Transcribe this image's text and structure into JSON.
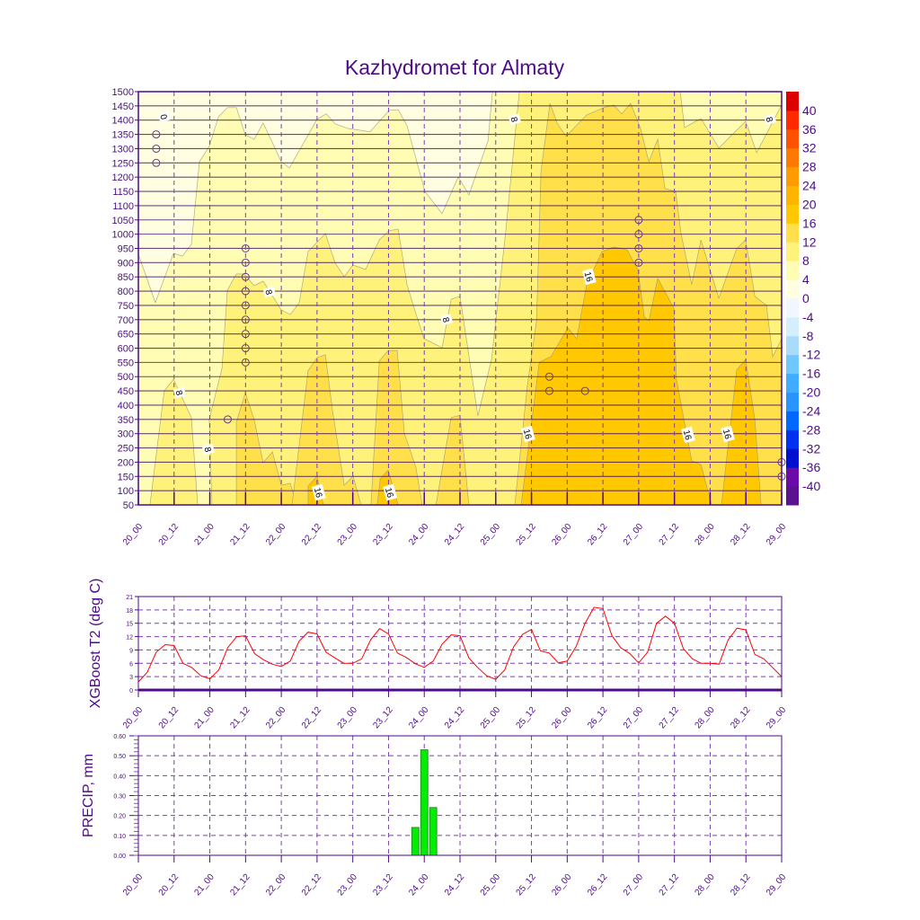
{
  "title": "Kazhydromet for Almaty",
  "time_labels": [
    "20_00",
    "20_12",
    "21_00",
    "21_12",
    "22_00",
    "22_12",
    "23_00",
    "23_12",
    "24_00",
    "24_12",
    "25_00",
    "25_12",
    "26_00",
    "26_12",
    "27_00",
    "27_12",
    "28_00",
    "28_12",
    "29_00"
  ],
  "chart_data": [
    {
      "type": "heatmap",
      "subtype": "filled-contour time-height cross-section",
      "x_unit": "hours since 20_00",
      "x_range": [
        0,
        216
      ],
      "y_ticks": [
        50,
        100,
        150,
        200,
        250,
        300,
        350,
        400,
        450,
        500,
        550,
        600,
        650,
        700,
        750,
        800,
        850,
        900,
        950,
        1000,
        1050,
        1100,
        1150,
        1200,
        1250,
        1300,
        1350,
        1400,
        1450,
        1500
      ],
      "y_range": [
        50,
        1500
      ],
      "colorbar": {
        "labels": [
          "-40",
          "-36",
          "-32",
          "-28",
          "-24",
          "-20",
          "-16",
          "-12",
          "-8",
          "-4",
          "0",
          "4",
          "8",
          "12",
          "16",
          "20",
          "24",
          "28",
          "32",
          "36",
          "40"
        ],
        "colors": [
          "#5a1290",
          "#6c0aa8",
          "#0010d0",
          "#0030f0",
          "#0068ff",
          "#2894ff",
          "#40acff",
          "#70c6ff",
          "#a8dcfa",
          "#d4eefc",
          "#f2f7ff",
          "#fffee0",
          "#fffcb4",
          "#fff27a",
          "#ffe04a",
          "#ffc800",
          "#ffb400",
          "#ff9a00",
          "#ff7800",
          "#ff5200",
          "#ff2a00",
          "#dc0000"
        ]
      },
      "contour_fills": [
        {
          "range": "<0",
          "color": "#f2f7ff",
          "polygons": [
            [
              [
                0,
                1500
              ],
              [
                0,
                1381
              ],
              [
                3.3,
                1355
              ],
              [
                7.8,
                1406
              ],
              [
                11.8,
                1422
              ],
              [
                14.8,
                1497
              ],
              [
                14.8,
                1500
              ]
            ]
          ]
        },
        {
          "range": "0-4",
          "color": "#fffee0",
          "polygons": [
            [
              [
                0,
                1500
              ],
              [
                0,
                930
              ],
              [
                5.7,
                760
              ],
              [
                11.8,
                933
              ],
              [
                14.8,
                923
              ],
              [
                17.8,
                964
              ],
              [
                20.5,
                1254
              ],
              [
                23.8,
                1308
              ],
              [
                26.9,
                1412
              ],
              [
                29.9,
                1444
              ],
              [
                32.9,
                1444
              ],
              [
                35.9,
                1349
              ],
              [
                38.9,
                1333
              ],
              [
                41.9,
                1390
              ],
              [
                48,
                1254
              ],
              [
                50.7,
                1232
              ],
              [
                60,
                1403
              ],
              [
                63.1,
                1422
              ],
              [
                66.1,
                1387
              ],
              [
                70.3,
                1371
              ],
              [
                77.8,
                1359
              ],
              [
                84.2,
                1434
              ],
              [
                87.2,
                1437
              ],
              [
                90.2,
                1381
              ],
              [
                96.2,
                1150
              ],
              [
                102,
                1072
              ],
              [
                107.4,
                1201
              ],
              [
                111,
                1138
              ],
              [
                117.4,
                1327
              ],
              [
                118.9,
                1500
              ]
            ]
          ]
        },
        {
          "range": "8-12",
          "color": "#fff27a",
          "polygons": [
            [
              [
                3.9,
                50
              ],
              [
                8.7,
                450
              ],
              [
                11.8,
                491
              ],
              [
                17.8,
                356
              ],
              [
                19.9,
                50
              ]
            ],
            [
              [
                24.7,
                50
              ],
              [
                23.8,
                350
              ],
              [
                28.1,
                529
              ],
              [
                29.9,
                804
              ],
              [
                32.9,
                860
              ],
              [
                35.6,
                860
              ],
              [
                38.9,
                819
              ],
              [
                41.9,
                835
              ],
              [
                48,
                734
              ],
              [
                51,
                718
              ],
              [
                54,
                759
              ],
              [
                57,
                939
              ],
              [
                62.8,
                1002
              ],
              [
                66.1,
                898
              ],
              [
                69.1,
                851
              ],
              [
                72.1,
                892
              ],
              [
                76.3,
                876
              ],
              [
                80.9,
                980
              ],
              [
                84.2,
                1012
              ],
              [
                87.2,
                1018
              ],
              [
                90.2,
                823
              ],
              [
                92.3,
                750
              ],
              [
                95.9,
                633
              ],
              [
                102,
                602
              ],
              [
                105,
                772
              ],
              [
                108,
                782
              ],
              [
                114,
                362
              ],
              [
                118.6,
                561
              ],
              [
                123.4,
                1012
              ],
              [
                127.9,
                1500
              ],
              [
                181.9,
                1500
              ],
              [
                183.4,
                1374
              ],
              [
                188.9,
                1406
              ],
              [
                194.9,
                1302
              ],
              [
                203.9,
                1396
              ],
              [
                207.6,
                1286
              ],
              [
                216,
                1453
              ],
              [
                216,
                50
              ]
            ]
          ]
        },
        {
          "range": "12-16",
          "color": "#ffe04a",
          "polygons": [
            [
              [
                32.9,
                50
              ],
              [
                32.9,
                340
              ],
              [
                35.9,
                444
              ],
              [
                38.9,
                350
              ],
              [
                41.9,
                198
              ],
              [
                45,
                236
              ],
              [
                48,
                119
              ],
              [
                51,
                126
              ],
              [
                53.1,
                50
              ]
            ],
            [
              [
                51.6,
                50
              ],
              [
                57,
                520
              ],
              [
                60,
                567
              ],
              [
                62.8,
                577
              ],
              [
                65.2,
                381
              ],
              [
                69.1,
                119
              ],
              [
                72.1,
                151
              ],
              [
                74.8,
                50
              ]
            ],
            [
              [
                78.1,
                50
              ],
              [
                80.9,
                555
              ],
              [
                83.9,
                592
              ],
              [
                86.9,
                592
              ],
              [
                89.3,
                302
              ],
              [
                93.2,
                182
              ],
              [
                95.3,
                50
              ]
            ],
            [
              [
                99.9,
                50
              ],
              [
                105,
                356
              ],
              [
                108,
                365
              ],
              [
                111,
                50
              ]
            ],
            [
              [
                126.4,
                50
              ],
              [
                130.6,
                466
              ],
              [
                133.7,
                696
              ],
              [
                135.2,
                1223
              ],
              [
                138.2,
                1459
              ],
              [
                140.6,
                1390
              ],
              [
                143.6,
                1343
              ],
              [
                150.5,
                1418
              ],
              [
                156.3,
                1444
              ],
              [
                159.6,
                1453
              ],
              [
                162.3,
                1422
              ],
              [
                165.3,
                1459
              ],
              [
                168.6,
                1371
              ],
              [
                171.4,
                1254
              ],
              [
                174.4,
                1333
              ],
              [
                176.8,
                1160
              ],
              [
                180.4,
                1150
              ],
              [
                182.2,
                1002
              ],
              [
                185.8,
                823
              ],
              [
                188.9,
                980
              ],
              [
                194.9,
                775
              ],
              [
                200.9,
                949
              ],
              [
                203.9,
                980
              ],
              [
                207,
                782
              ],
              [
                210.9,
                750
              ],
              [
                213,
                570
              ],
              [
                216,
                633
              ],
              [
                216,
                50
              ]
            ]
          ]
        },
        {
          "range": "16-20",
          "color": "#ffc800",
          "polygons": [
            [
              [
                57,
                50
              ],
              [
                57,
                116
              ],
              [
                60,
                151
              ],
              [
                62.1,
                50
              ]
            ],
            [
              [
                80.2,
                50
              ],
              [
                81.2,
                141
              ],
              [
                83.9,
                173
              ],
              [
                87.2,
                50
              ]
            ],
            [
              [
                128.5,
                50
              ],
              [
                134.6,
                551
              ],
              [
                138.5,
                570
              ],
              [
                144.2,
                671
              ],
              [
                147.2,
                633
              ],
              [
                150.5,
                823
              ],
              [
                155.7,
                939
              ],
              [
                159.6,
                955
              ],
              [
                164.1,
                945
              ],
              [
                167.7,
                876
              ],
              [
                169.9,
                709
              ],
              [
                171.4,
                696
              ],
              [
                174.4,
                845
              ],
              [
                179.8,
                741
              ],
              [
                180.7,
                488
              ],
              [
                185.8,
                205
              ],
              [
                188.9,
                192
              ],
              [
                192.5,
                50
              ]
            ],
            [
              [
                195.8,
                50
              ],
              [
                200.9,
                523
              ],
              [
                203.9,
                561
              ],
              [
                207,
                350
              ],
              [
                209.1,
                50
              ]
            ]
          ]
        }
      ],
      "base_fill": {
        "range": "4-8",
        "color": "#fffcb4"
      },
      "contour_labels": [
        {
          "text": "0",
          "at": [
            8.7,
            1412
          ]
        },
        {
          "text": "8",
          "at": [
            13.9,
            444
          ]
        },
        {
          "text": "8",
          "at": [
            23.5,
            245
          ]
        },
        {
          "text": "8",
          "at": [
            44,
            797
          ]
        },
        {
          "text": "8",
          "at": [
            103.5,
            700
          ]
        },
        {
          "text": "8",
          "at": [
            126.4,
            1403
          ]
        },
        {
          "text": "8",
          "at": [
            212.1,
            1403
          ]
        },
        {
          "text": "16",
          "at": [
            60.6,
            94
          ]
        },
        {
          "text": "16",
          "at": [
            84.5,
            94
          ]
        },
        {
          "text": "16",
          "at": [
            130.9,
            299
          ]
        },
        {
          "text": "16",
          "at": [
            151.4,
            851
          ]
        },
        {
          "text": "16",
          "at": [
            184.6,
            296
          ]
        },
        {
          "text": "16",
          "at": [
            197.9,
            299
          ]
        }
      ],
      "calm_wind_points": [
        [
          6,
          1350
        ],
        [
          6,
          1300
        ],
        [
          6,
          1250
        ],
        [
          36,
          950
        ],
        [
          36,
          900
        ],
        [
          36,
          850
        ],
        [
          36,
          800
        ],
        [
          36,
          750
        ],
        [
          36,
          700
        ],
        [
          36,
          650
        ],
        [
          36,
          600
        ],
        [
          36,
          550
        ],
        [
          30,
          350
        ],
        [
          138,
          500
        ],
        [
          138,
          450
        ],
        [
          150,
          450
        ],
        [
          168,
          1050
        ],
        [
          168,
          1000
        ],
        [
          168,
          950
        ],
        [
          168,
          900
        ],
        [
          216,
          200
        ],
        [
          216,
          150
        ]
      ]
    },
    {
      "type": "line",
      "ylabel": "XGBoost T2 (deg C)",
      "x_unit": "hours since 20_00",
      "x_step_hours": 3,
      "ylim": [
        0,
        21
      ],
      "y_ticks": [
        "0",
        "3",
        "6",
        "9",
        "12",
        "15",
        "18",
        "21"
      ],
      "color": "#ff0000",
      "values": [
        1.8,
        4,
        8.5,
        10.2,
        10,
        6,
        5,
        3.2,
        2.5,
        4.5,
        9.5,
        12,
        12.2,
        8.2,
        6.8,
        5.8,
        5.3,
        6.5,
        11,
        13,
        12.6,
        8.5,
        7.2,
        6,
        6,
        7,
        11.3,
        13.8,
        12.6,
        8.3,
        7.3,
        5.9,
        5.1,
        6.5,
        10.3,
        12.4,
        12.2,
        7.2,
        5,
        3.2,
        2.4,
        4.5,
        9.7,
        12.5,
        13.6,
        8.8,
        8.3,
        6.1,
        6.5,
        9.8,
        15,
        18.6,
        18.3,
        12.2,
        9.5,
        8.2,
        6.1,
        8.5,
        15,
        16.6,
        15,
        9.3,
        7,
        6,
        6,
        5.8,
        11.2,
        13.9,
        13.5,
        8,
        7,
        5,
        3
      ]
    },
    {
      "type": "bar",
      "ylabel": "PRECIP, mm",
      "x_unit": "hours since 20_00",
      "ylim": [
        0,
        0.6
      ],
      "y_ticks": [
        "0.00",
        "0.10",
        "0.20",
        "0.30",
        "0.40",
        "0.50",
        "0.60"
      ],
      "color": "#00ee00",
      "bars": [
        {
          "hour": 93,
          "value": 0.14
        },
        {
          "hour": 96,
          "value": 0.53
        },
        {
          "hour": 99,
          "value": 0.24
        }
      ]
    }
  ]
}
